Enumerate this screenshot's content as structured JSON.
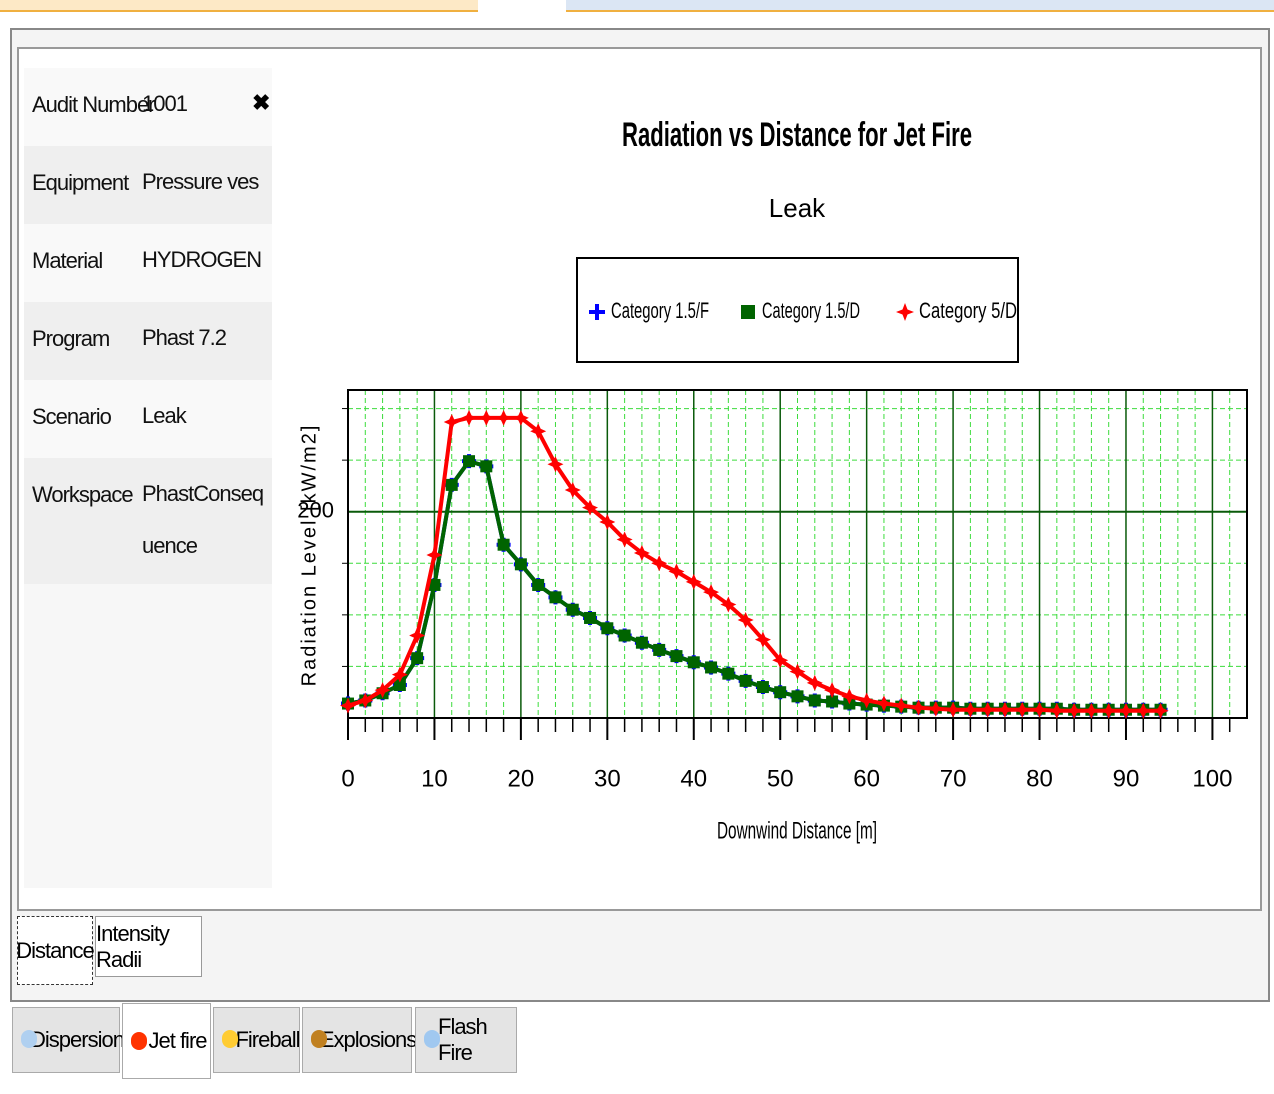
{
  "info_panel": {
    "rows": [
      {
        "label": "Audit Number",
        "value": "1001"
      },
      {
        "label": "Equipment",
        "value": "Pressure vessel"
      },
      {
        "label": "Material",
        "value": "HYDROGEN"
      },
      {
        "label": "Program",
        "value": "Phast 7.2"
      },
      {
        "label": "Scenario",
        "value": "Leak"
      },
      {
        "label": "Workspace",
        "value": "PhastConsequence"
      }
    ]
  },
  "chart_data": {
    "type": "line",
    "title": "Radiation vs Distance for Jet Fire",
    "subtitle": "Leak",
    "x_label": "Downwind Distance [m]",
    "y_label": "Radiation Level [kW/m2]",
    "x": [
      0,
      2,
      4,
      6,
      8,
      10,
      12,
      14,
      16,
      18,
      20,
      22,
      24,
      26,
      28,
      30,
      32,
      34,
      36,
      38,
      40,
      42,
      44,
      46,
      48,
      50,
      52,
      54,
      56,
      58,
      60,
      62,
      64,
      66,
      68,
      70,
      72,
      74,
      76,
      78,
      80,
      82,
      84,
      86,
      88,
      90,
      92,
      94
    ],
    "series": [
      {
        "name": "Category 1.5/F",
        "color": "#0000ff",
        "marker": "plus",
        "values": [
          14,
          17,
          24,
          32,
          58,
          129,
          226,
          249,
          244,
          168,
          149,
          129,
          117,
          105,
          97,
          87,
          80,
          73,
          66,
          60,
          54,
          49,
          43,
          36,
          30,
          25,
          21,
          17,
          16,
          14,
          13,
          12,
          11,
          10,
          10,
          10,
          9,
          9,
          9,
          9,
          9,
          9,
          8,
          8,
          8,
          8,
          8,
          8
        ]
      },
      {
        "name": "Category 1.5/D",
        "color": "#006400",
        "marker": "square",
        "values": [
          14,
          17,
          24,
          32,
          58,
          129,
          226,
          249,
          244,
          168,
          149,
          129,
          117,
          105,
          97,
          87,
          80,
          73,
          66,
          60,
          54,
          49,
          43,
          36,
          30,
          25,
          21,
          17,
          16,
          14,
          13,
          12,
          11,
          10,
          10,
          10,
          9,
          9,
          9,
          9,
          9,
          9,
          8,
          8,
          8,
          8,
          8,
          8
        ]
      },
      {
        "name": "Category 5/D",
        "color": "#ff0000",
        "marker": "star",
        "values": [
          12,
          17,
          27,
          42,
          80,
          158,
          287,
          291,
          291,
          291,
          291,
          278,
          246,
          221,
          204,
          190,
          173,
          160,
          150,
          142,
          132,
          122,
          110,
          95,
          76,
          56,
          45,
          34,
          27,
          21,
          17,
          14,
          12,
          10,
          9,
          8,
          8,
          8,
          8,
          8,
          8,
          7,
          7,
          7,
          7,
          7,
          7,
          7
        ]
      }
    ],
    "xlim": [
      0,
      104
    ],
    "xticks": [
      0,
      10,
      20,
      30,
      40,
      50,
      60,
      70,
      80,
      90,
      100
    ],
    "xminor_ticks": [
      2,
      4,
      6,
      8,
      12,
      14,
      16,
      18,
      22,
      24,
      26,
      28,
      32,
      34,
      36,
      38,
      42,
      44,
      46,
      48,
      52,
      54,
      56,
      58,
      62,
      64,
      66,
      68,
      72,
      74,
      76,
      78,
      82,
      84,
      86,
      88,
      92,
      94,
      96,
      98,
      102
    ],
    "ylim": [
      0,
      318
    ],
    "yticks": [
      200
    ],
    "yminor_ticks": [
      50,
      100,
      150,
      250,
      300
    ],
    "grid": true,
    "legend": "top"
  },
  "view_tabs": [
    "Distance",
    "Intensity Radii"
  ],
  "module_tabs": [
    "Dispersion",
    "Jet fire",
    "Fireball",
    "Explosions",
    "Flash Fire"
  ]
}
